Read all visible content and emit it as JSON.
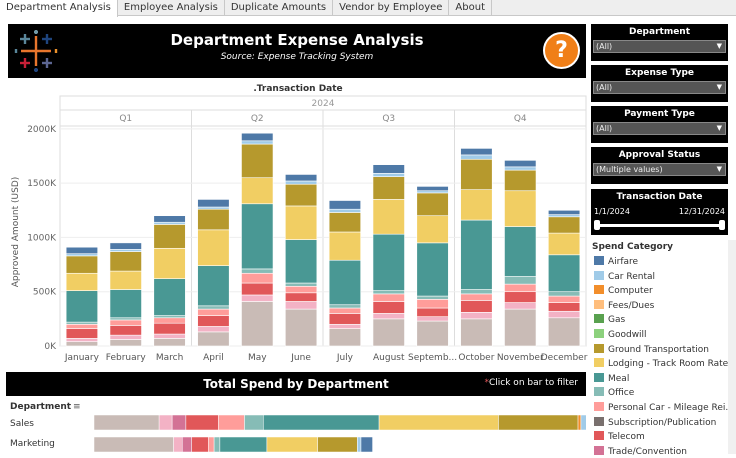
{
  "tabs": [
    {
      "label": "Department Analysis",
      "active": true
    },
    {
      "label": "Employee Analysis",
      "active": false
    },
    {
      "label": "Duplicate Amounts",
      "active": false
    },
    {
      "label": "Vendor by Employee",
      "active": false
    },
    {
      "label": "About",
      "active": false
    }
  ],
  "header": {
    "title": "Department Expense Analysis",
    "subtitle": "Source: Expense Tracking System",
    "help_label": "?"
  },
  "filters": [
    {
      "title": "Department",
      "value": "(All)"
    },
    {
      "title": "Expense Type",
      "value": "(All)"
    },
    {
      "title": "Payment Type",
      "value": "(All)"
    },
    {
      "title": "Approval Status",
      "value": "(Multiple values)"
    }
  ],
  "date_filter": {
    "title": "Transaction Date",
    "start": "1/1/2024",
    "end": "12/31/2024"
  },
  "legend": {
    "title": "Spend Category",
    "items": [
      {
        "label": "Airfare",
        "color": "#4e79a7"
      },
      {
        "label": "Car Rental",
        "color": "#a0cbe8"
      },
      {
        "label": "Computer",
        "color": "#f28e2b"
      },
      {
        "label": "Fees/Dues",
        "color": "#ffbe7d"
      },
      {
        "label": "Gas",
        "color": "#59a14f"
      },
      {
        "label": "Goodwill",
        "color": "#8cd17d"
      },
      {
        "label": "Ground Transportation",
        "color": "#b6992d"
      },
      {
        "label": "Lodging - Track Room Rate ...",
        "color": "#f1ce63"
      },
      {
        "label": "Meal",
        "color": "#499894"
      },
      {
        "label": "Office",
        "color": "#86bcb6"
      },
      {
        "label": "Personal Car - Mileage Rei...",
        "color": "#ff9d9a"
      },
      {
        "label": "Subscription/Publication",
        "color": "#79706e"
      },
      {
        "label": "Telecom",
        "color": "#e15759"
      },
      {
        "label": "Trade/Convention",
        "color": "#d37295"
      }
    ]
  },
  "chart_data": {
    "type": "bar",
    "stacked": true,
    "title": ".Transaction Date",
    "year_label": "2024",
    "quarters": [
      "Q1",
      "Q2",
      "Q3",
      "Q4"
    ],
    "categories": [
      "January",
      "February",
      "March",
      "April",
      "May",
      "June",
      "July",
      "August",
      "Septemb...",
      "October",
      "November",
      "December"
    ],
    "ylabel": "Approved Amount (USD)",
    "ylim": [
      0,
      2100000
    ],
    "yticks": [
      0,
      500000,
      1000000,
      1500000,
      2000000
    ],
    "ytick_labels": [
      "0K",
      "500K",
      "1000K",
      "1500K",
      "2000K"
    ],
    "grid": true,
    "series": [
      {
        "name": "Subscription/Publication",
        "color": "#c9bbb6",
        "values": [
          40000,
          60000,
          70000,
          130000,
          410000,
          340000,
          160000,
          250000,
          230000,
          250000,
          340000,
          260000
        ]
      },
      {
        "name": "Trade/Convention",
        "color": "#f3b2c5",
        "values": [
          30000,
          40000,
          40000,
          50000,
          60000,
          70000,
          40000,
          50000,
          40000,
          60000,
          60000,
          60000
        ]
      },
      {
        "name": "Telecom",
        "color": "#e15759",
        "values": [
          90000,
          90000,
          100000,
          100000,
          110000,
          80000,
          100000,
          110000,
          80000,
          110000,
          100000,
          80000
        ]
      },
      {
        "name": "Personal Car - Mileage Reimbursement",
        "color": "#ff9d9a",
        "values": [
          40000,
          50000,
          50000,
          60000,
          90000,
          60000,
          50000,
          70000,
          80000,
          60000,
          70000,
          60000
        ]
      },
      {
        "name": "Office",
        "color": "#86bcb6",
        "values": [
          20000,
          20000,
          20000,
          30000,
          40000,
          30000,
          30000,
          30000,
          30000,
          40000,
          70000,
          40000
        ]
      },
      {
        "name": "Meal",
        "color": "#499894",
        "values": [
          290000,
          260000,
          340000,
          370000,
          600000,
          400000,
          410000,
          520000,
          490000,
          640000,
          460000,
          340000
        ]
      },
      {
        "name": "Lodging - Track Room Rate Here",
        "color": "#f1ce63",
        "values": [
          160000,
          170000,
          280000,
          330000,
          240000,
          310000,
          260000,
          320000,
          250000,
          280000,
          330000,
          200000
        ]
      },
      {
        "name": "Ground Transportation",
        "color": "#b6992d",
        "values": [
          160000,
          180000,
          220000,
          190000,
          310000,
          200000,
          180000,
          210000,
          210000,
          280000,
          190000,
          150000
        ]
      },
      {
        "name": "Car Rental",
        "color": "#a0cbe8",
        "values": [
          20000,
          20000,
          20000,
          20000,
          30000,
          30000,
          30000,
          30000,
          20000,
          40000,
          30000,
          20000
        ]
      },
      {
        "name": "Airfare",
        "color": "#4e79a7",
        "values": [
          60000,
          60000,
          60000,
          70000,
          70000,
          60000,
          80000,
          80000,
          40000,
          60000,
          60000,
          40000
        ]
      }
    ]
  },
  "dept_chart": {
    "title": "Total Spend by Department",
    "hint": "Click on bar to filter",
    "hint_marker": "*",
    "column_header": "Department",
    "sort_icon": "≡",
    "rows": [
      {
        "label": "Sales",
        "segments": [
          {
            "color": "#c9bbb6",
            "value": 900000
          },
          {
            "color": "#f3b2c5",
            "value": 180000
          },
          {
            "color": "#d37295",
            "value": 190000
          },
          {
            "color": "#e15759",
            "value": 450000
          },
          {
            "color": "#ff9d9a",
            "value": 360000
          },
          {
            "color": "#86bcb6",
            "value": 260000
          },
          {
            "color": "#499894",
            "value": 1600000
          },
          {
            "color": "#f1ce63",
            "value": 1650000
          },
          {
            "color": "#b6992d",
            "value": 1100000
          },
          {
            "color": "#f28e2b",
            "value": 40000
          },
          {
            "color": "#a0cbe8",
            "value": 100000
          },
          {
            "color": "#4e79a7",
            "value": 380000
          }
        ]
      },
      {
        "label": "Marketing",
        "segments": [
          {
            "color": "#c9bbb6",
            "value": 1100000
          },
          {
            "color": "#f3b2c5",
            "value": 120000
          },
          {
            "color": "#d37295",
            "value": 130000
          },
          {
            "color": "#e15759",
            "value": 230000
          },
          {
            "color": "#ff9d9a",
            "value": 80000
          },
          {
            "color": "#86bcb6",
            "value": 80000
          },
          {
            "color": "#499894",
            "value": 650000
          },
          {
            "color": "#f1ce63",
            "value": 700000
          },
          {
            "color": "#b6992d",
            "value": 550000
          },
          {
            "color": "#a0cbe8",
            "value": 50000
          },
          {
            "color": "#4e79a7",
            "value": 160000
          }
        ]
      }
    ],
    "xmax": 6800000
  }
}
